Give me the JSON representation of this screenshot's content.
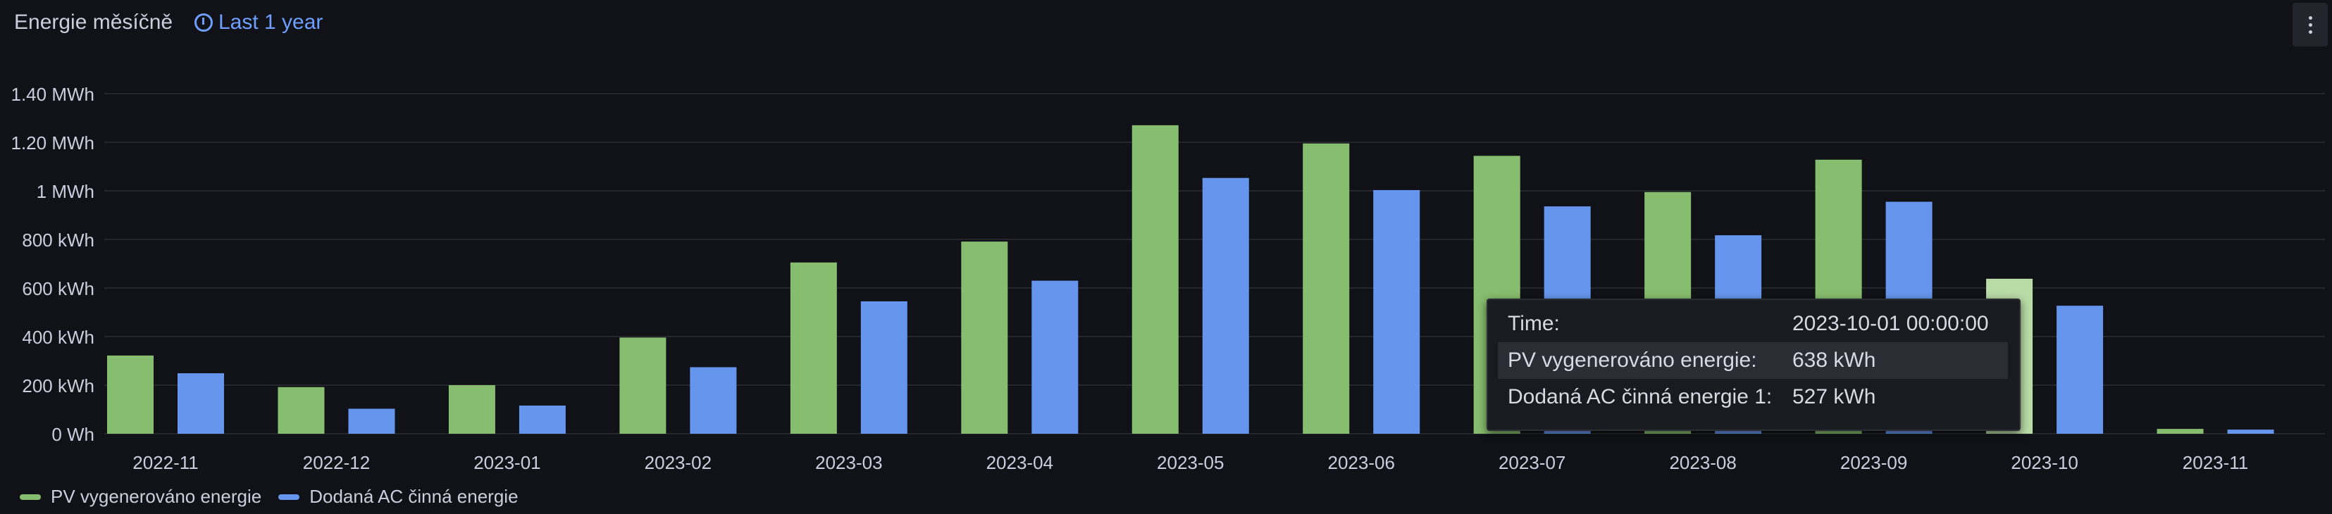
{
  "panel": {
    "title": "Energie měsíčně",
    "time_range": "Last 1 year"
  },
  "chart_data": {
    "type": "bar",
    "categories": [
      "2022-11",
      "2022-12",
      "2023-01",
      "2023-02",
      "2023-03",
      "2023-04",
      "2023-05",
      "2023-06",
      "2023-07",
      "2023-08",
      "2023-09",
      "2023-10",
      "2023-11"
    ],
    "series": [
      {
        "name": "PV vygenerováno energie",
        "color": "#87bd6e",
        "values": [
          322,
          192,
          200,
          396,
          705,
          791,
          1270,
          1195,
          1144,
          995,
          1128,
          638,
          20
        ]
      },
      {
        "name": "Dodaná AC činná energie",
        "color": "#6595ec",
        "values": [
          249,
          103,
          116,
          274,
          545,
          630,
          1053,
          1003,
          936,
          817,
          955,
          527,
          17
        ]
      }
    ],
    "y_unit": "kWh",
    "ylim": [
      0,
      1400
    ],
    "yticks": [
      {
        "value": 0,
        "label": "0 Wh"
      },
      {
        "value": 200,
        "label": "200 kWh"
      },
      {
        "value": 400,
        "label": "400 kWh"
      },
      {
        "value": 600,
        "label": "600 kWh"
      },
      {
        "value": 800,
        "label": "800 kWh"
      },
      {
        "value": 1000,
        "label": "1 MWh"
      },
      {
        "value": 1200,
        "label": "1.20 MWh"
      },
      {
        "value": 1400,
        "label": "1.40 MWh"
      }
    ],
    "grid": true,
    "legend": "bottom-left",
    "highlight_index": 11,
    "highlight_color": "#b9dba6"
  },
  "tooltip": {
    "rows": [
      {
        "label": "Time:",
        "value": "2023-10-01 00:00:00"
      },
      {
        "label": "PV vygenerováno energie:",
        "value": "638 kWh"
      },
      {
        "label": "Dodaná AC činná energie 1:",
        "value": "527 kWh"
      }
    ]
  }
}
